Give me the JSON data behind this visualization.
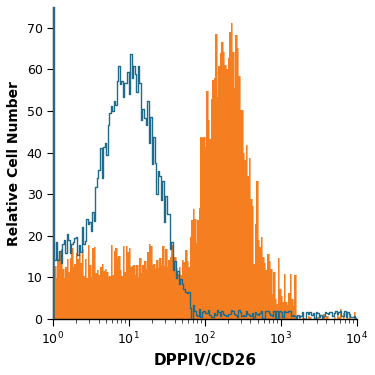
{
  "xlabel": "DPPIV/CD26",
  "ylabel": "Relative Cell Number",
  "xlim_log": [
    1.0,
    10000.0
  ],
  "ylim": [
    0,
    75
  ],
  "yticks": [
    0,
    10,
    20,
    30,
    40,
    50,
    60,
    70
  ],
  "orange_color": "#F57F20",
  "blue_color": "#1E6B8C",
  "bg_color": "#FFFFFF",
  "seed": 42,
  "n_bins": 200
}
